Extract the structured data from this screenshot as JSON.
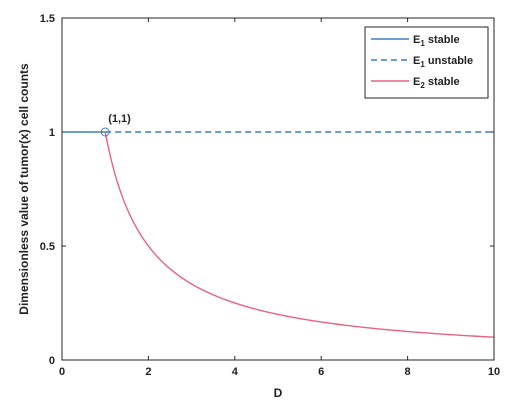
{
  "chart_data": {
    "type": "line",
    "xlabel": "D",
    "ylabel": "Dimensionless value of tumor(x) cell counts",
    "xlim": [
      0,
      10
    ],
    "ylim": [
      0,
      1.5
    ],
    "xticks": [
      0,
      2,
      4,
      6,
      8,
      10
    ],
    "yticks": [
      0,
      0.5,
      1,
      1.5
    ],
    "xtick_labels": [
      "0",
      "2",
      "4",
      "6",
      "8",
      "10"
    ],
    "ytick_labels": [
      "0",
      "0.5",
      "1",
      "1.5"
    ],
    "grid": false,
    "legend_position": "top-right",
    "series": [
      {
        "name": "E1 stable",
        "label_main": "E",
        "label_sub": "1",
        "label_rest": " stable",
        "color": "#3f7fbf",
        "style": "solid",
        "x": [
          0,
          1
        ],
        "y": [
          1,
          1
        ]
      },
      {
        "name": "E1 unstable",
        "label_main": "E",
        "label_sub": "1",
        "label_rest": " unstable",
        "color": "#3f7fbf",
        "style": "dashed",
        "x": [
          1,
          10
        ],
        "y": [
          1,
          1
        ]
      },
      {
        "name": "E2 stable",
        "label_main": "E",
        "label_sub": "2",
        "label_rest": " stable",
        "color": "#e8637f",
        "style": "solid",
        "x": [
          1,
          1.1,
          1.25,
          1.5,
          1.75,
          2,
          2.5,
          3,
          3.5,
          4,
          5,
          6,
          7,
          8,
          9,
          10
        ],
        "y": [
          1,
          0.909,
          0.8,
          0.667,
          0.571,
          0.5,
          0.4,
          0.333,
          0.286,
          0.25,
          0.2,
          0.167,
          0.143,
          0.125,
          0.111,
          0.1
        ]
      }
    ],
    "annotation": {
      "text": "(1,1)",
      "x": 1,
      "y": 1,
      "marker_color": "#3f7fbf"
    }
  }
}
